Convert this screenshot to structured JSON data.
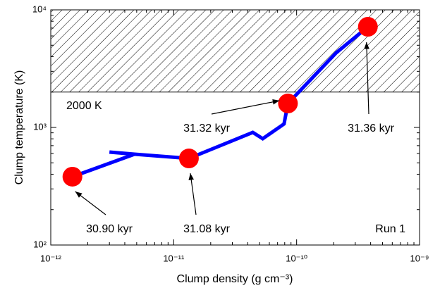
{
  "chart_data": {
    "type": "line",
    "xlabel": "Clump density (g cm⁻³)",
    "ylabel": "Clump temperature (K)",
    "xscale": "log",
    "yscale": "log",
    "xlim": [
      1e-12,
      1e-09
    ],
    "xticks": [
      {
        "value": 1e-12,
        "label": "10⁻¹²"
      },
      {
        "value": 1e-11,
        "label": "10⁻¹¹"
      },
      {
        "value": 1e-10,
        "label": "10⁻¹⁰"
      },
      {
        "value": 1e-09,
        "label": "10⁻⁹"
      }
    ],
    "ylim": [
      100,
      10000
    ],
    "yticks": [
      {
        "value": 100,
        "label": "10²"
      },
      {
        "value": 1000,
        "label": "10³"
      },
      {
        "value": 10000,
        "label": "10⁴"
      }
    ],
    "series": [
      {
        "color": "#0000ff",
        "x": [
          1.5e-12,
          4.8e-12,
          3e-12,
          4.8e-12,
          1.33e-11,
          4.4e-11,
          5.3e-11,
          7.9e-11,
          8.5e-11,
          2.1e-10,
          3.8e-10
        ],
        "values": [
          381,
          592,
          617,
          592,
          545,
          908,
          802,
          1071,
          1600,
          4315,
          7180
        ]
      },
      {
        "color": "#ff0000",
        "marker": "circle",
        "x": [
          1.5e-12,
          1.33e-11,
          8.5e-11,
          3.8e-10
        ],
        "values": [
          381,
          545,
          1600,
          7180
        ]
      }
    ],
    "threshold": 2000,
    "threshold_label": "2000 K",
    "point_labels": [
      "30.90 kyr",
      "31.08 kyr",
      "31.32 kyr",
      "31.36 kyr"
    ],
    "run_label": "Run 1"
  }
}
